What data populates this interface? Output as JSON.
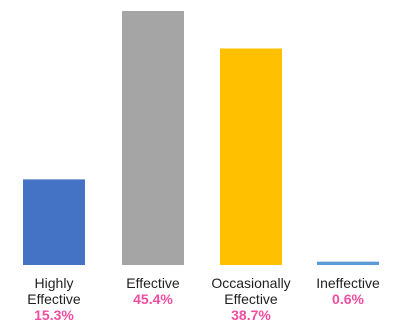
{
  "chart_data": {
    "type": "bar",
    "categories": [
      [
        "Highly",
        "Effective"
      ],
      [
        "Effective"
      ],
      [
        "Occasionally",
        "Effective"
      ],
      [
        "Ineffective"
      ]
    ],
    "values": [
      15.3,
      45.4,
      38.7,
      0.6
    ],
    "value_labels": [
      "15.3%",
      "45.4%",
      "38.7%",
      "0.6%"
    ],
    "colors": [
      "#4472C4",
      "#A5A5A5",
      "#FFC000",
      "#5B9BD5"
    ],
    "value_label_color": "#F04EA0",
    "ylim": [
      0,
      45.4
    ],
    "grid": false,
    "legend": "none"
  }
}
